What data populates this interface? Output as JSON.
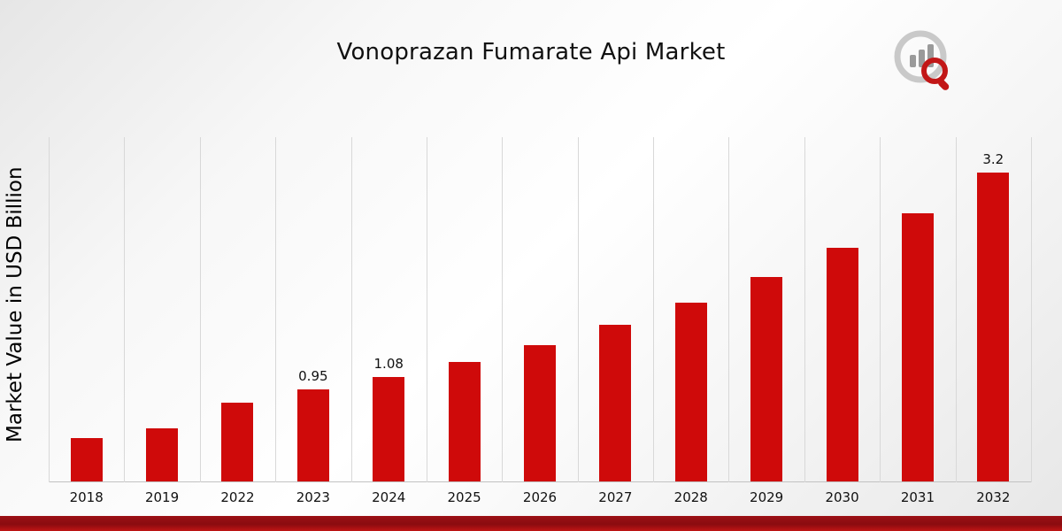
{
  "chart": {
    "title": "Vonoprazan Fumarate Api Market",
    "ylabel": "Market Value in USD Billion"
  },
  "chart_data": {
    "type": "bar",
    "title": "Vonoprazan Fumarate Api Market",
    "xlabel": "",
    "ylabel": "Market Value in USD Billion",
    "categories": [
      "2018",
      "2019",
      "2022",
      "2023",
      "2024",
      "2025",
      "2026",
      "2027",
      "2028",
      "2029",
      "2030",
      "2031",
      "2032"
    ],
    "values": [
      0.45,
      0.55,
      0.82,
      0.95,
      1.08,
      1.24,
      1.41,
      1.62,
      1.85,
      2.12,
      2.42,
      2.78,
      3.2
    ],
    "bar_labels": [
      null,
      null,
      null,
      "0.95",
      "1.08",
      null,
      null,
      null,
      null,
      null,
      null,
      null,
      "3.2"
    ],
    "ylim": [
      0,
      3.57
    ],
    "grid": "vertical",
    "legend": "none",
    "bar_color": "#cf0a0a",
    "accent_color": "#8a0c10"
  }
}
